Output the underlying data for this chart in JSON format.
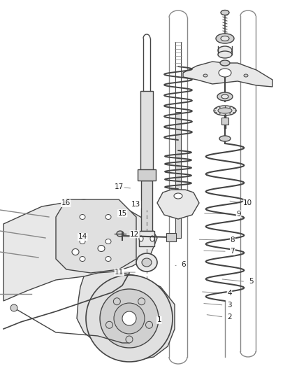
{
  "bg_color": "#ffffff",
  "fig_width": 4.38,
  "fig_height": 5.33,
  "dpi": 100,
  "line_color": "#444444",
  "light_gray": "#cccccc",
  "mid_gray": "#888888",
  "dark_gray": "#555555",
  "fill_light": "#e8e8e8",
  "fill_mid": "#d0d0d0",
  "label_positions": {
    "1": [
      0.52,
      0.858,
      0.49,
      0.862
    ],
    "2": [
      0.75,
      0.85,
      0.67,
      0.843
    ],
    "3": [
      0.75,
      0.818,
      0.66,
      0.813
    ],
    "4": [
      0.75,
      0.786,
      0.655,
      0.782
    ],
    "5": [
      0.82,
      0.755,
      0.72,
      0.748
    ],
    "6": [
      0.6,
      0.71,
      0.567,
      0.714
    ],
    "7": [
      0.76,
      0.674,
      0.66,
      0.672
    ],
    "8": [
      0.76,
      0.644,
      0.645,
      0.642
    ],
    "9": [
      0.78,
      0.574,
      0.662,
      0.572
    ],
    "10": [
      0.81,
      0.545,
      0.745,
      0.538
    ],
    "11": [
      0.39,
      0.73,
      0.448,
      0.73
    ],
    "12": [
      0.44,
      0.628,
      0.472,
      0.628
    ],
    "13": [
      0.445,
      0.548,
      0.478,
      0.554
    ],
    "14": [
      0.27,
      0.635,
      0.348,
      0.637
    ],
    "15": [
      0.4,
      0.572,
      0.432,
      0.567
    ],
    "16": [
      0.215,
      0.545,
      0.295,
      0.536
    ],
    "17": [
      0.39,
      0.5,
      0.432,
      0.505
    ]
  }
}
